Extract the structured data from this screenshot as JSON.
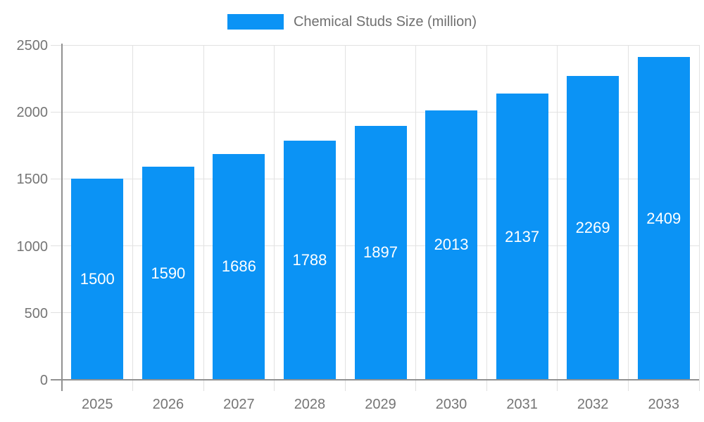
{
  "chart_data": {
    "type": "bar",
    "title": "Chemical Studs Size (million)",
    "legend": {
      "position": "top",
      "entries": [
        "Chemical Studs Size (million)"
      ]
    },
    "categories": [
      "2025",
      "2026",
      "2027",
      "2028",
      "2029",
      "2030",
      "2031",
      "2032",
      "2033"
    ],
    "series": [
      {
        "name": "Chemical Studs Size (million)",
        "values": [
          1500,
          1590,
          1686,
          1788,
          1897,
          2013,
          2137,
          2269,
          2409
        ]
      }
    ],
    "bar_value_labels": [
      "1500",
      "1590",
      "1686",
      "1788",
      "1897",
      "2013",
      "2137",
      "2269",
      "2409"
    ],
    "xlabel": "",
    "ylabel": "",
    "ylim": [
      0,
      2500
    ],
    "y_ticks": [
      0,
      500,
      1000,
      1500,
      2000,
      2500
    ],
    "y_tick_labels": [
      "0",
      "500",
      "1000",
      "1500",
      "2000",
      "2500"
    ],
    "grid": true,
    "colors": {
      "bar": "#0b93f5",
      "bar_value_text": "#ffffff",
      "gridline": "#e2e2e2",
      "tick": "#e0e0e0",
      "axis_line": "#919191",
      "tick_label_text": "#757575",
      "legend_text": "#707070",
      "background": "#ffffff"
    }
  }
}
